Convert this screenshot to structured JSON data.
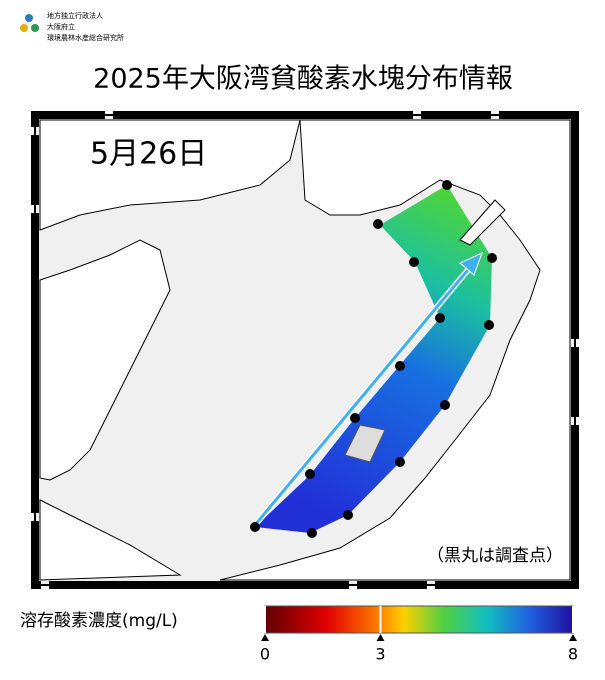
{
  "header": {
    "org": [
      "地方独立行政法人",
      "大阪府立",
      "環境農林水産総合研究所"
    ],
    "title": "2025年大阪湾貧酸素水塊分布情報"
  },
  "map": {
    "date": "5月26日",
    "note": "（黒丸は調査点）"
  },
  "colorbar": {
    "label": "溶存酸素濃度(mg/L)",
    "lim": [
      0,
      8
    ],
    "ticks": [
      0,
      3,
      8
    ]
  }
}
